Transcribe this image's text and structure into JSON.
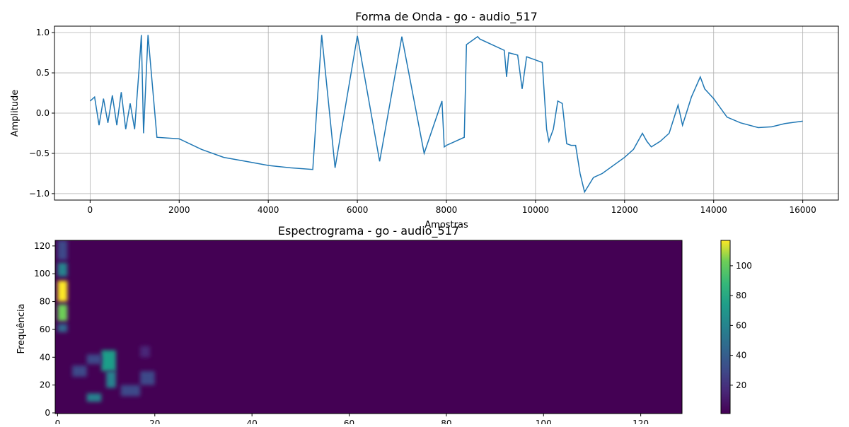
{
  "chart_data": [
    {
      "type": "line",
      "title": "Forma de Onda - go - audio_517",
      "xlabel": "Amostras",
      "ylabel": "Amplitude",
      "xlim": [
        -800,
        16800
      ],
      "ylim": [
        -1.08,
        1.08
      ],
      "x_ticks": [
        0,
        2000,
        4000,
        6000,
        8000,
        10000,
        12000,
        14000,
        16000
      ],
      "y_ticks": [
        -1.0,
        -0.5,
        0.0,
        0.5,
        1.0
      ],
      "x_tick_labels": [
        "0",
        "2000",
        "4000",
        "6000",
        "8000",
        "10000",
        "12000",
        "14000",
        "16000"
      ],
      "y_tick_labels": [
        "−1.0",
        "−0.5",
        "0.0",
        "0.5",
        "1.0"
      ],
      "grid": true,
      "color": "#1f77b4",
      "series": [
        {
          "x": [
            0,
            100,
            200,
            300,
            400,
            500,
            600,
            700,
            800,
            900,
            1000,
            1100,
            1150,
            1200,
            1300,
            1500,
            2000,
            2500,
            3000,
            3500,
            4000,
            4500,
            5000,
            5200,
            5500,
            6000,
            6500,
            7000,
            7500,
            7900,
            7950,
            8000,
            8400,
            8450,
            8700,
            8750,
            9300,
            9350,
            9400,
            9600,
            9700,
            9800,
            9900,
            10000,
            10150,
            10250,
            10300,
            10400,
            10500,
            10600,
            10700,
            10800,
            10900,
            11000,
            11100,
            11300,
            11500,
            12000,
            12200,
            12400,
            12500,
            12600,
            12800,
            13000,
            13200,
            13300,
            13500,
            13700,
            13800,
            14000,
            14300,
            14600,
            15000,
            15300,
            15600,
            16000
          ],
          "y": [
            0.15,
            0.2,
            -0.15,
            0.18,
            -0.12,
            0.22,
            -0.15,
            0.26,
            -0.2,
            0.12,
            -0.2,
            0.55,
            0.97,
            -0.25,
            0.97,
            -0.3,
            -0.32,
            -0.45,
            -0.55,
            -0.6,
            -0.65,
            -0.68,
            -0.7,
            0.97,
            -0.68,
            0.96,
            -0.6,
            0.95,
            -0.5,
            0.15,
            -0.42,
            -0.4,
            -0.3,
            0.85,
            0.95,
            0.92,
            0.78,
            0.45,
            0.75,
            0.72,
            0.3,
            0.7,
            0.68,
            0.66,
            0.63,
            -0.2,
            -0.35,
            -0.2,
            0.15,
            0.12,
            -0.38,
            -0.4,
            -0.4,
            -0.75,
            -0.98,
            -0.8,
            -0.75,
            -0.55,
            -0.45,
            -0.25,
            -0.35,
            -0.42,
            -0.35,
            -0.25,
            0.1,
            -0.15,
            0.2,
            0.45,
            0.3,
            0.18,
            -0.05,
            -0.12,
            -0.18,
            -0.17,
            -0.13,
            -0.1
          ]
        }
      ]
    },
    {
      "type": "heatmap",
      "title": "Espectrograma - go - audio_517",
      "xlabel": "",
      "ylabel": "Frequência",
      "xlim": [
        -0.5,
        128.5
      ],
      "ylim": [
        -0.5,
        124
      ],
      "x_ticks": [
        0,
        20,
        40,
        60,
        80,
        100,
        120
      ],
      "y_ticks": [
        0,
        20,
        40,
        60,
        80,
        100,
        120
      ],
      "x_tick_labels": [
        "0",
        "20",
        "40",
        "60",
        "80",
        "100",
        "120"
      ],
      "y_tick_labels": [
        "0",
        "20",
        "40",
        "60",
        "80",
        "100",
        "120"
      ],
      "colorscale": "viridis",
      "colorbar": {
        "min": 1,
        "max": 117,
        "ticks": [
          20,
          40,
          60,
          80,
          100
        ],
        "tick_labels": [
          "20",
          "40",
          "60",
          "80",
          "100"
        ]
      },
      "background_color": "#440154",
      "hotspots": [
        {
          "x0": 0,
          "x1": 2,
          "y0": 80,
          "y1": 95,
          "value": 110
        },
        {
          "x0": 0,
          "x1": 2,
          "y0": 66,
          "y1": 78,
          "value": 105
        },
        {
          "x0": 0,
          "x1": 2,
          "y0": 98,
          "y1": 108,
          "value": 60
        },
        {
          "x0": 0,
          "x1": 2,
          "y0": 58,
          "y1": 64,
          "value": 45
        },
        {
          "x0": 0,
          "x1": 2,
          "y0": 110,
          "y1": 124,
          "value": 25
        },
        {
          "x0": 9,
          "x1": 12,
          "y0": 30,
          "y1": 45,
          "value": 75
        },
        {
          "x0": 10,
          "x1": 12,
          "y0": 18,
          "y1": 30,
          "value": 62
        },
        {
          "x0": 6,
          "x1": 9,
          "y0": 8,
          "y1": 14,
          "value": 55
        },
        {
          "x0": 3,
          "x1": 6,
          "y0": 26,
          "y1": 34,
          "value": 30
        },
        {
          "x0": 6,
          "x1": 9,
          "y0": 35,
          "y1": 42,
          "value": 28
        },
        {
          "x0": 13,
          "x1": 17,
          "y0": 12,
          "y1": 20,
          "value": 30
        },
        {
          "x0": 17,
          "x1": 20,
          "y0": 20,
          "y1": 30,
          "value": 24
        },
        {
          "x0": 17,
          "x1": 19,
          "y0": 40,
          "y1": 48,
          "value": 22
        }
      ]
    }
  ]
}
